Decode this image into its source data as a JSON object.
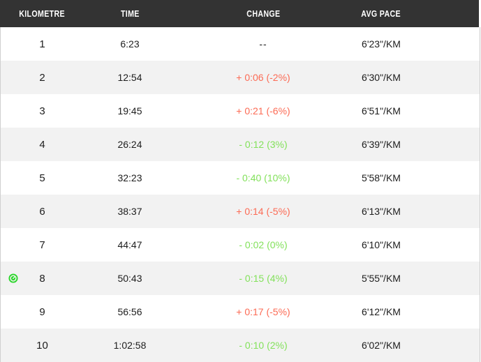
{
  "header": {
    "columns": [
      {
        "key": "kilometre",
        "label": "KILOMETRE"
      },
      {
        "key": "time",
        "label": "TIME"
      },
      {
        "key": "change",
        "label": "CHANGE"
      },
      {
        "key": "avg_pace",
        "label": "AVG PACE"
      }
    ]
  },
  "splits": {
    "rows": [
      {
        "km": "1",
        "time": "6:23",
        "change": "--",
        "trend": "none",
        "pace": "6'23\"/KM",
        "fastest": false
      },
      {
        "km": "2",
        "time": "12:54",
        "change": "+ 0:06 (-2%)",
        "trend": "slower",
        "pace": "6'30\"/KM",
        "fastest": false
      },
      {
        "km": "3",
        "time": "19:45",
        "change": "+ 0:21 (-6%)",
        "trend": "slower",
        "pace": "6'51\"/KM",
        "fastest": false
      },
      {
        "km": "4",
        "time": "26:24",
        "change": "- 0:12 (3%)",
        "trend": "faster",
        "pace": "6'39\"/KM",
        "fastest": false
      },
      {
        "km": "5",
        "time": "32:23",
        "change": "- 0:40 (10%)",
        "trend": "faster",
        "pace": "5'58\"/KM",
        "fastest": false
      },
      {
        "km": "6",
        "time": "38:37",
        "change": "+ 0:14 (-5%)",
        "trend": "slower",
        "pace": "6'13\"/KM",
        "fastest": false
      },
      {
        "km": "7",
        "time": "44:47",
        "change": "- 0:02 (0%)",
        "trend": "faster",
        "pace": "6'10\"/KM",
        "fastest": false
      },
      {
        "km": "8",
        "time": "50:43",
        "change": "- 0:15 (4%)",
        "trend": "faster",
        "pace": "5'55\"/KM",
        "fastest": true
      },
      {
        "km": "9",
        "time": "56:56",
        "change": "+ 0:17 (-5%)",
        "trend": "slower",
        "pace": "6'12\"/KM",
        "fastest": false
      },
      {
        "km": "10",
        "time": "1:02:58",
        "change": "- 0:10 (2%)",
        "trend": "faster",
        "pace": "6'02\"/KM",
        "fastest": false
      }
    ]
  },
  "icons": {
    "fastest_badge": "gauge-icon"
  },
  "colors": {
    "header_bg": "#333333",
    "header_text": "#ffffff",
    "row_alt_bg": "#f2f2f2",
    "text": "#1d1d1d",
    "slower": "#fc6b55",
    "faster": "#82e15a",
    "badge_green": "#2bd62b",
    "edge_border": "#c9c9c9"
  }
}
